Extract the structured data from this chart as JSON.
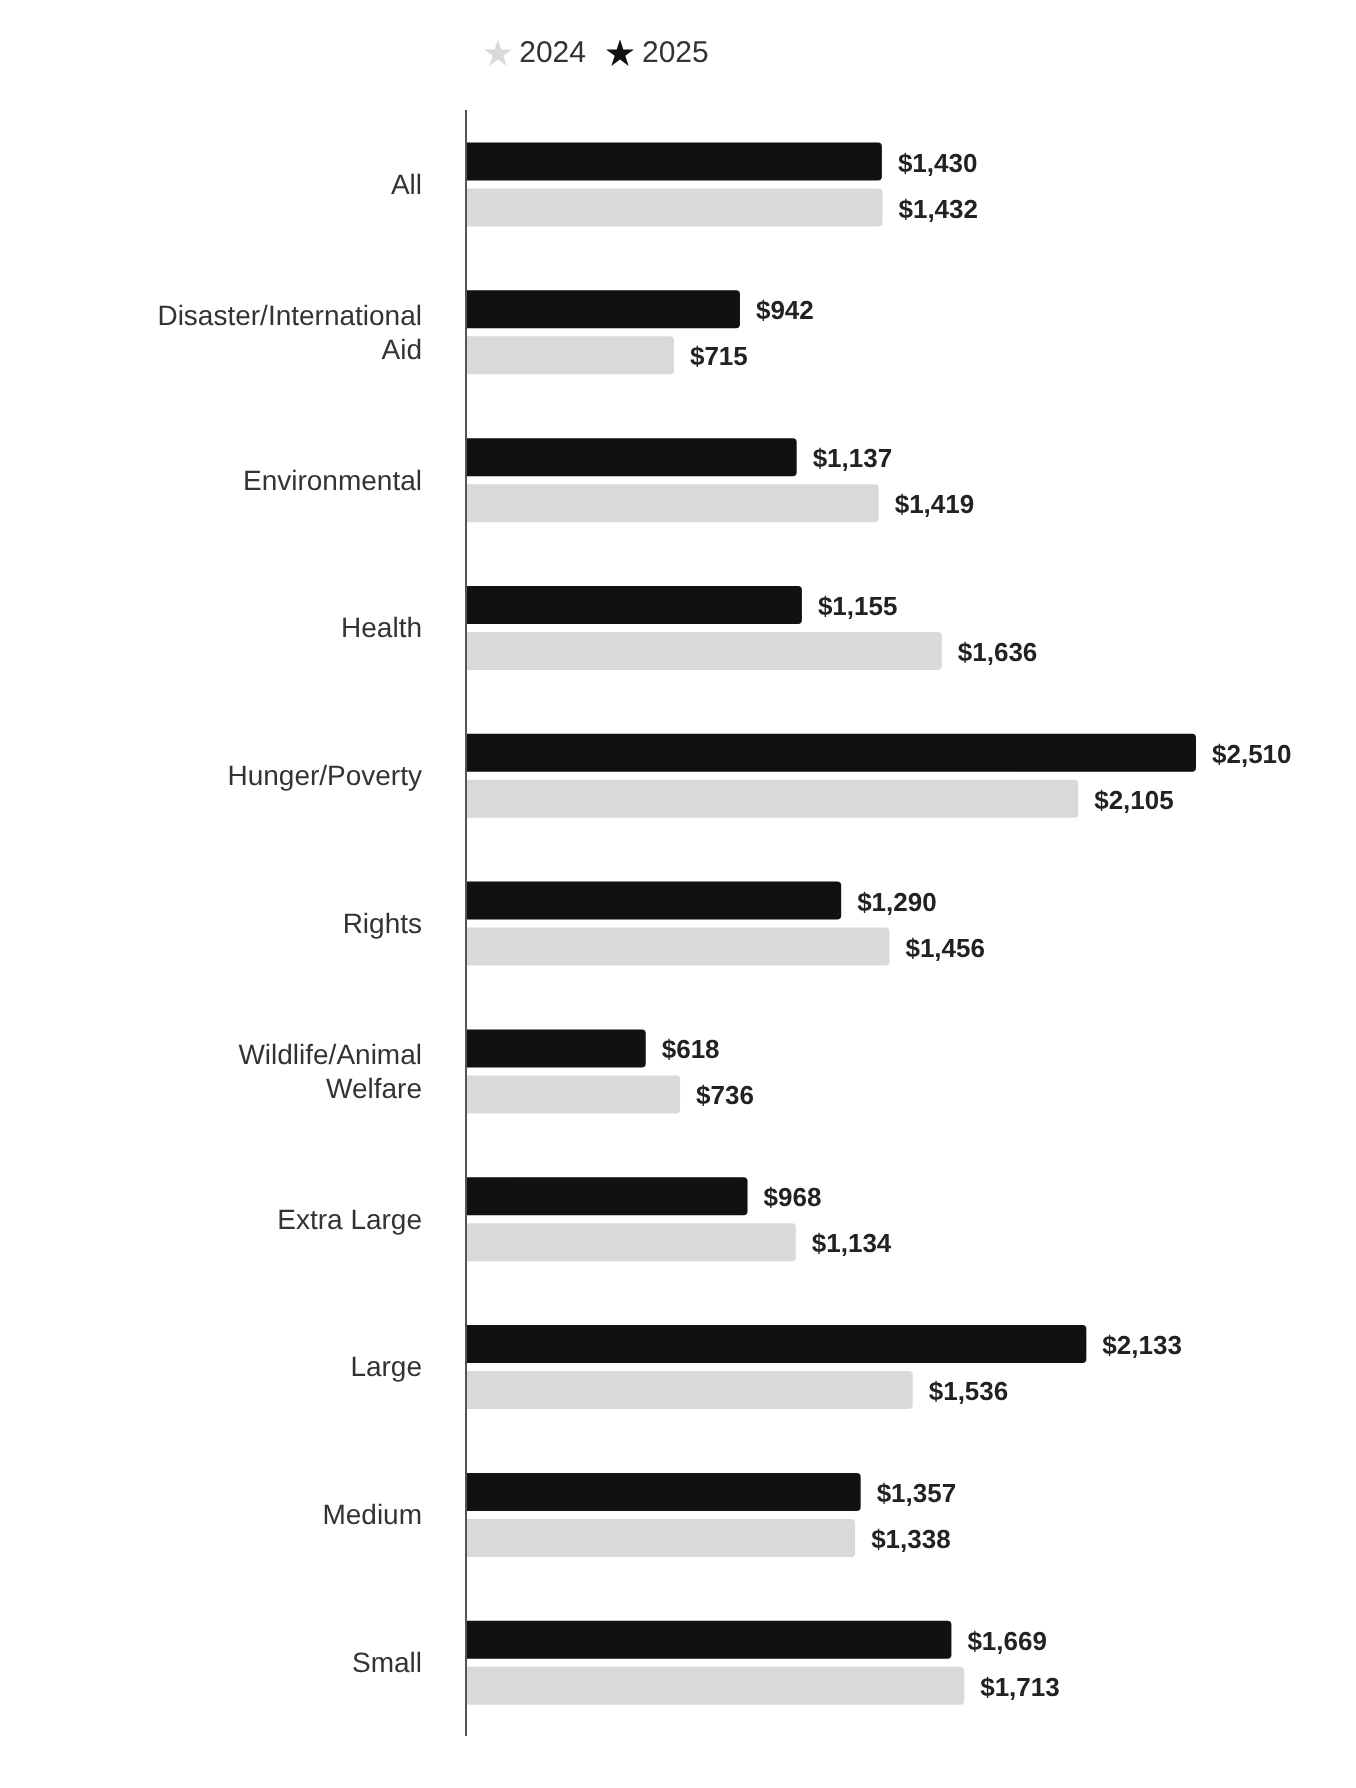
{
  "chart_data": {
    "type": "bar",
    "orientation": "horizontal",
    "categories": [
      "All",
      "Disaster/International Aid",
      "Environmental",
      "Health",
      "Hunger/Poverty",
      "Rights",
      "Wildlife/Animal Welfare",
      "Extra Large",
      "Large",
      "Medium",
      "Small"
    ],
    "series": [
      {
        "name": "2025",
        "color": "#111111",
        "values": [
          1430,
          942,
          1137,
          1155,
          2510,
          1290,
          618,
          968,
          2133,
          1357,
          1669
        ],
        "value_labels": [
          "$1,430",
          "$942",
          "$1,137",
          "$1,155",
          "$2,510",
          "$1,290",
          "$618",
          "$968",
          "$2,133",
          "$1,357",
          "$1,669"
        ]
      },
      {
        "name": "2024",
        "color": "#d9d9d9",
        "values": [
          1432,
          715,
          1419,
          1636,
          2105,
          1456,
          736,
          1134,
          1536,
          1338,
          1713
        ],
        "value_labels": [
          "$1,432",
          "$715",
          "$1,419",
          "$1,636",
          "$2,105",
          "$1,456",
          "$736",
          "$1,134",
          "$1,536",
          "$1,338",
          "$1,713"
        ]
      }
    ],
    "legend": "top",
    "tick_labels": "y",
    "grid": false
  }
}
